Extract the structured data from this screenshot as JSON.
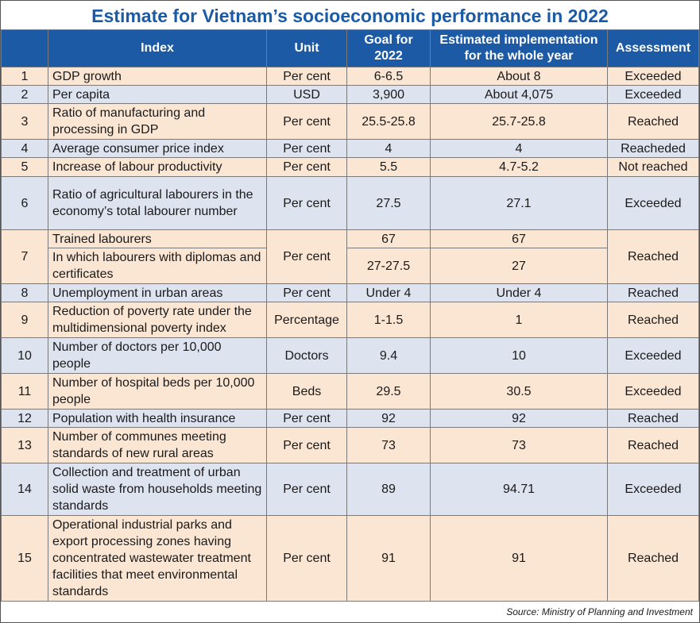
{
  "title": "Estimate for Vietnam’s socioeconomic performance in 2022",
  "headers": [
    "",
    "Index",
    "Unit",
    "Goal for 2022",
    "Estimated implementation for the whole year",
    "Assessment"
  ],
  "colors": {
    "header": "#1c5aa6",
    "title": "#1b5ba6",
    "row_odd": "#fbe6d4",
    "row_even": "#dee3f0"
  },
  "rows": [
    {
      "no": "1",
      "index": "GDP growth",
      "unit": "Per cent",
      "goal": "6-6.5",
      "estimate": "About 8",
      "assessment": "Exceeded"
    },
    {
      "no": "2",
      "index": "Per capita",
      "unit": "USD",
      "goal": "3,900",
      "estimate": "About 4,075",
      "assessment": "Exceeded"
    },
    {
      "no": "3",
      "index": "Ratio of manufacturing and processing in GDP",
      "unit": "Per cent",
      "goal": "25.5-25.8",
      "estimate": "25.7-25.8",
      "assessment": "Reached"
    },
    {
      "no": "4",
      "index": "Average consumer price index",
      "unit": "Per cent",
      "goal": "4",
      "estimate": "4",
      "assessment": "Reacheded"
    },
    {
      "no": "5",
      "index": "Increase of labour productivity",
      "unit": "Per cent",
      "goal": "5.5",
      "estimate": "4.7-5.2",
      "assessment": "Not reached"
    },
    {
      "no": "6",
      "index": "Ratio of agricultural labourers in the economy’s total labourer number",
      "unit": "Per cent",
      "goal": "27.5",
      "estimate": "27.1",
      "assessment": "Exceeded"
    },
    {
      "no": "7",
      "index": "Trained labourers",
      "unit": "Per cent",
      "goal": "67",
      "estimate": "67",
      "assessment": "Reached",
      "sub": {
        "index": "In which labourers with diplomas and certificates",
        "goal": "27-27.5",
        "estimate": "27"
      }
    },
    {
      "no": "8",
      "index": "Unemployment in urban areas",
      "unit": "Per cent",
      "goal": "Under 4",
      "estimate": "Under 4",
      "assessment": "Reached"
    },
    {
      "no": "9",
      "index": "Reduction of poverty rate under the multidimensional poverty index",
      "unit": "Percentage",
      "goal": "1-1.5",
      "estimate": "1",
      "assessment": "Reached"
    },
    {
      "no": "10",
      "index": "Number of doctors per 10,000 people",
      "unit": "Doctors",
      "goal": "9.4",
      "estimate": "10",
      "assessment": "Exceeded"
    },
    {
      "no": "11",
      "index": "Number of hospital beds per 10,000 people",
      "unit": "Beds",
      "goal": "29.5",
      "estimate": "30.5",
      "assessment": "Exceeded"
    },
    {
      "no": "12",
      "index": "Population with health insurance",
      "unit": "Per cent",
      "goal": "92",
      "estimate": "92",
      "assessment": "Reached"
    },
    {
      "no": "13",
      "index": "Number of communes meeting standards of new rural areas",
      "unit": "Per cent",
      "goal": "73",
      "estimate": "73",
      "assessment": "Reached"
    },
    {
      "no": "14",
      "index": "Collection and treatment of urban solid waste from households meeting standards",
      "unit": "Per cent",
      "goal": "89",
      "estimate": "94.71",
      "assessment": "Exceeded"
    },
    {
      "no": "15",
      "index": "Operational industrial parks and export processing zones having concentrated wastewater treatment facilities that meet environmental standards",
      "unit": "Per cent",
      "goal": "91",
      "estimate": "91",
      "assessment": "Reached"
    }
  ],
  "source": "Source: Ministry of Planning and Investment"
}
